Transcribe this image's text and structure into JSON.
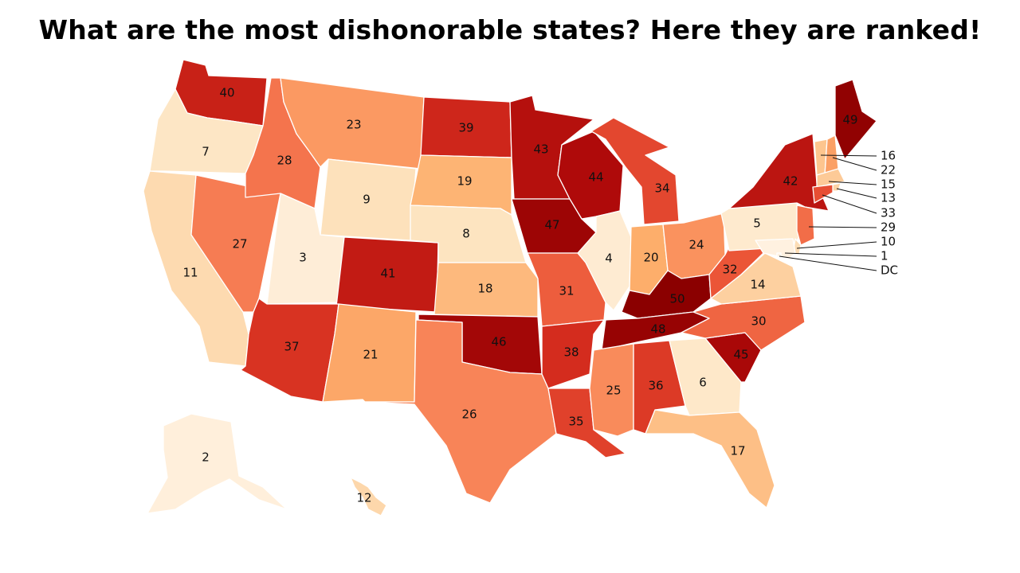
{
  "title": "What are the most dishonorable states? Here they are ranked!",
  "ranks": {
    "WA": "40",
    "OR": "7",
    "CA": "11",
    "ID": "28",
    "NV": "27",
    "MT": "23",
    "WY": "9",
    "UT": "3",
    "AZ": "37",
    "CO": "41",
    "NM": "21",
    "ND": "39",
    "SD": "19",
    "NE": "8",
    "KS": "18",
    "OK": "46",
    "TX": "26",
    "MN": "43",
    "IA": "47",
    "MO": "31",
    "AR": "38",
    "LA": "35",
    "WI": "44",
    "IL": "4",
    "MI": "34",
    "IN": "20",
    "OH": "24",
    "KY": "50",
    "TN": "48",
    "MS": "25",
    "AL": "36",
    "GA": "6",
    "FL": "17",
    "SC": "45",
    "NC": "30",
    "VA": "14",
    "WV": "32",
    "PA": "5",
    "NY": "42",
    "ME": "49",
    "AK": "2",
    "HI": "12",
    "VT": "16",
    "NH": "22",
    "MA": "15",
    "RI": "13",
    "CT": "33",
    "NJ": "29",
    "DE": "10",
    "MD": "1",
    "DC": "DC"
  },
  "colors": {
    "scale_low": "#fff1e0",
    "scale_high": "#8b0000",
    "border": "#ffffff"
  }
}
